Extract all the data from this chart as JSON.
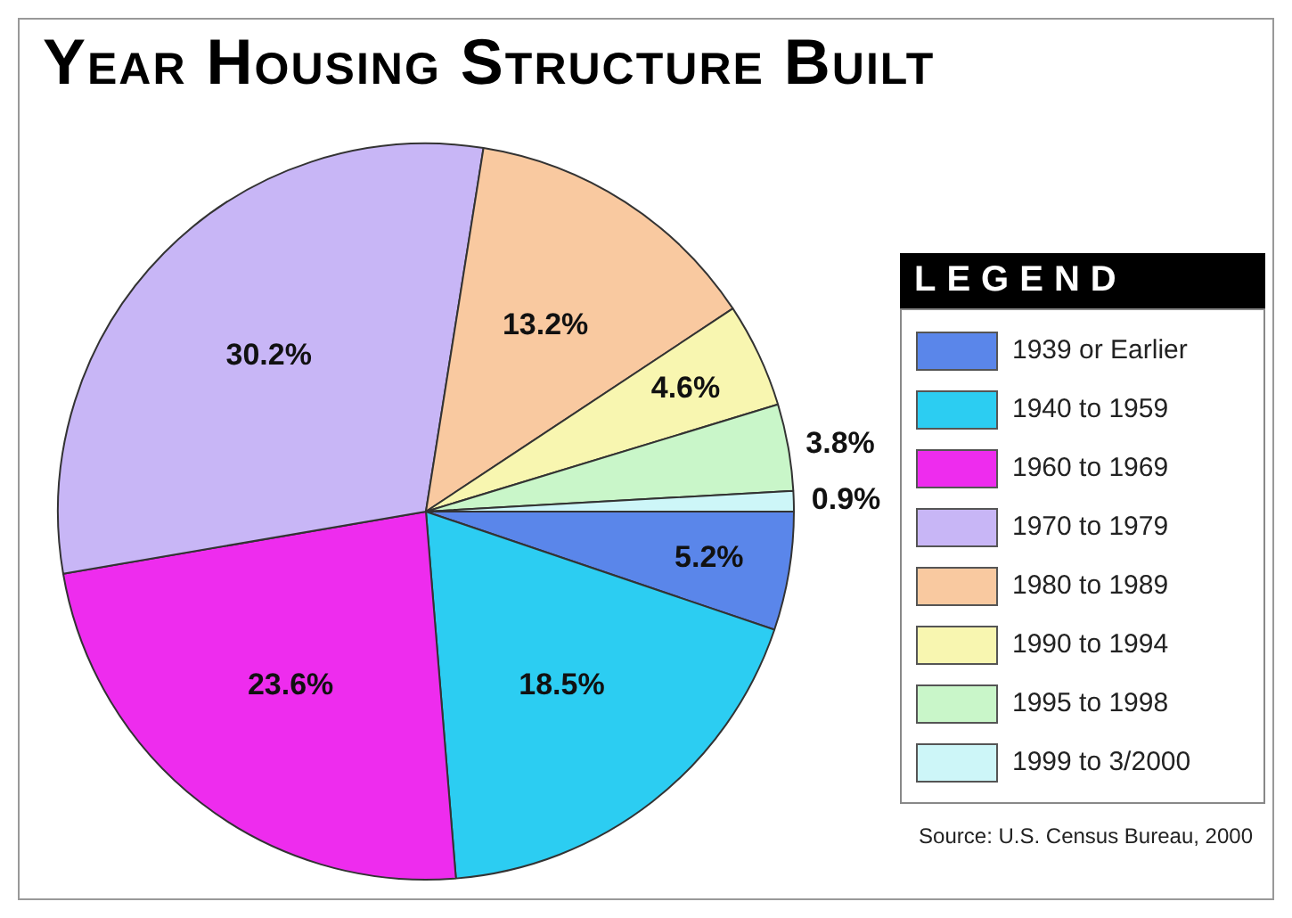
{
  "chart_data": {
    "type": "pie",
    "title": "Year Housing Structure Built",
    "legend_title": "LEGEND",
    "legend": "right",
    "categories": [
      "1939 or Earlier",
      "1940 to 1959",
      "1960 to 1969",
      "1970 to 1979",
      "1980 to 1989",
      "1990 to 1994",
      "1995 to 1998",
      "1999 to 3/2000"
    ],
    "values": [
      5.2,
      18.5,
      23.6,
      30.2,
      13.2,
      4.6,
      3.8,
      0.9
    ],
    "value_labels": [
      "5.2%",
      "18.5%",
      "23.6%",
      "30.2%",
      "13.2%",
      "4.6%",
      "3.8%",
      "0.9%"
    ],
    "colors": [
      "#5a86ea",
      "#2ccdf2",
      "#ee2cee",
      "#c8b6f6",
      "#f9c9a0",
      "#f8f6b0",
      "#c9f6c9",
      "#cdf6f8"
    ],
    "annotations": [
      "Source: U.S. Census Bureau, 2000"
    ]
  }
}
